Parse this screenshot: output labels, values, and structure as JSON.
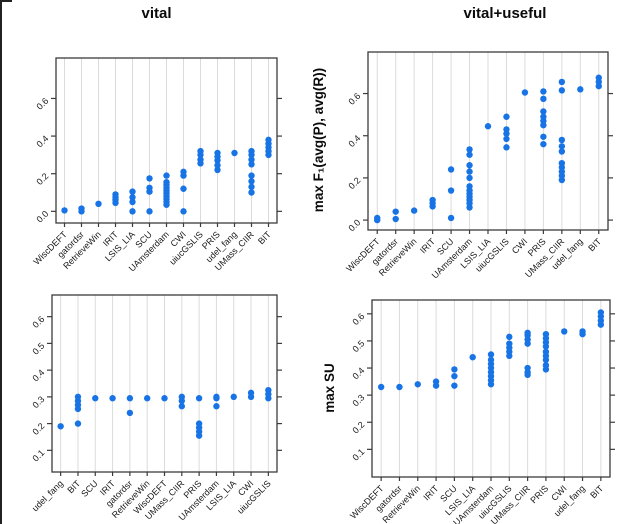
{
  "page": {
    "background": "#ffffff"
  },
  "colors": {
    "dot": "#1874E5",
    "grid": "#DBDBDB",
    "frame": "#3B3B3B",
    "text": "#1A1A1A"
  },
  "titles": {
    "left": "vital",
    "right": "vital+useful"
  },
  "axis_labels": {
    "f1": "max F₁(avg(P), avg(R))",
    "su": "max SU"
  },
  "chart_data": [
    {
      "id": "f1-vital",
      "type": "scatter",
      "title": "vital",
      "xlabel": "",
      "ylabel": "",
      "yticks": [
        0.0,
        0.2,
        0.4,
        0.6
      ],
      "ylim": [
        -0.062,
        0.815
      ],
      "categories": [
        "WiscDEFT",
        "gatordsr",
        "RetrieveWin",
        "IRIT",
        "LSIS_LIA",
        "SCU",
        "UAmsterdam",
        "CWI",
        "uiucGSLIS",
        "PRIS",
        "udel_fang",
        "UMass_CIIR",
        "BIT"
      ],
      "values": [
        [
          0.005
        ],
        [
          0.0,
          0.015
        ],
        [
          0.04
        ],
        [
          0.045,
          0.06,
          0.075,
          0.09
        ],
        [
          0.0,
          0.05,
          0.075,
          0.105
        ],
        [
          0.0,
          0.105,
          0.125,
          0.175
        ],
        [
          0.035,
          0.05,
          0.065,
          0.08,
          0.095,
          0.11,
          0.125,
          0.14,
          0.155,
          0.19
        ],
        [
          0.0,
          0.12,
          0.19,
          0.21
        ],
        [
          0.255,
          0.275,
          0.3,
          0.32
        ],
        [
          0.22,
          0.245,
          0.27,
          0.29,
          0.31
        ],
        [
          0.31
        ],
        [
          0.1,
          0.13,
          0.16,
          0.19,
          0.25,
          0.275,
          0.3,
          0.32
        ],
        [
          0.3,
          0.32,
          0.34,
          0.36,
          0.38
        ]
      ]
    },
    {
      "id": "f1-vital-useful",
      "type": "scatter",
      "title": "vital+useful",
      "xlabel": "",
      "ylabel": "max F₁(avg(P), avg(R))",
      "yticks": [
        0.0,
        0.2,
        0.4,
        0.6
      ],
      "ylim": [
        -0.047,
        0.797
      ],
      "categories": [
        "WiscDEFT",
        "gatordsr",
        "RetrieveWin",
        "IRIT",
        "SCU",
        "UAmsterdam",
        "LSIS_LIA",
        "uiucGSLIS",
        "CWI",
        "PRIS",
        "UMass_CIIR",
        "udel_fang",
        "BIT"
      ],
      "values": [
        [
          0.0,
          0.01
        ],
        [
          0.005,
          0.04
        ],
        [
          0.045
        ],
        [
          0.065,
          0.08,
          0.095
        ],
        [
          0.01,
          0.14,
          0.24
        ],
        [
          0.06,
          0.08,
          0.095,
          0.11,
          0.125,
          0.14,
          0.16,
          0.2,
          0.23,
          0.26,
          0.31,
          0.335
        ],
        [
          0.445
        ],
        [
          0.345,
          0.385,
          0.41,
          0.43,
          0.49
        ],
        [
          0.605
        ],
        [
          0.36,
          0.395,
          0.45,
          0.47,
          0.49,
          0.515,
          0.575,
          0.61
        ],
        [
          0.19,
          0.21,
          0.23,
          0.25,
          0.27,
          0.325,
          0.35,
          0.38,
          0.615,
          0.655
        ],
        [
          0.62
        ],
        [
          0.635,
          0.655,
          0.675
        ]
      ]
    },
    {
      "id": "su-vital",
      "type": "scatter",
      "title": "",
      "xlabel": "",
      "ylabel": "",
      "yticks": [
        0.1,
        0.2,
        0.3,
        0.4,
        0.5,
        0.6
      ],
      "ylim": [
        0.019,
        0.681
      ],
      "categories": [
        "udel_fang",
        "BIT",
        "SCU",
        "IRIT",
        "gatordsr",
        "RetrieveWin",
        "WiscDEFT",
        "UMass_CIIR",
        "PRIS",
        "UAmsterdam",
        "LSIS_LIA",
        "CWI",
        "uiucGSLIS"
      ],
      "values": [
        [
          0.19
        ],
        [
          0.2,
          0.255,
          0.27,
          0.285,
          0.3
        ],
        [
          0.295
        ],
        [
          0.295
        ],
        [
          0.24,
          0.295
        ],
        [
          0.295
        ],
        [
          0.295
        ],
        [
          0.265,
          0.285,
          0.3
        ],
        [
          0.155,
          0.17,
          0.185,
          0.2,
          0.295
        ],
        [
          0.265,
          0.295,
          0.3
        ],
        [
          0.3
        ],
        [
          0.3,
          0.315
        ],
        [
          0.295,
          0.31,
          0.325
        ]
      ]
    },
    {
      "id": "su-vital-useful",
      "type": "scatter",
      "title": "",
      "xlabel": "",
      "ylabel": "max SU",
      "yticks": [
        0.1,
        0.2,
        0.3,
        0.4,
        0.5,
        0.6
      ],
      "ylim": [
        -0.002,
        0.651
      ],
      "categories": [
        "WiscDEFT",
        "gatordsr",
        "RetrieveWin",
        "IRIT",
        "SCU",
        "LSIS_LIA",
        "UAmsterdam",
        "uiucGSLIS",
        "UMass_CIIR",
        "PRIS",
        "CWI",
        "udel_fang",
        "BIT"
      ],
      "values": [
        [
          0.33
        ],
        [
          0.33
        ],
        [
          0.34
        ],
        [
          0.335,
          0.35
        ],
        [
          0.335,
          0.37,
          0.395
        ],
        [
          0.44
        ],
        [
          0.34,
          0.355,
          0.37,
          0.385,
          0.4,
          0.415,
          0.43,
          0.45
        ],
        [
          0.445,
          0.46,
          0.475,
          0.49,
          0.515
        ],
        [
          0.375,
          0.385,
          0.4,
          0.49,
          0.505,
          0.52,
          0.53
        ],
        [
          0.395,
          0.41,
          0.43,
          0.445,
          0.46,
          0.48,
          0.495,
          0.51,
          0.525
        ],
        [
          0.535
        ],
        [
          0.525,
          0.535
        ],
        [
          0.56,
          0.575,
          0.59,
          0.605
        ]
      ]
    }
  ]
}
